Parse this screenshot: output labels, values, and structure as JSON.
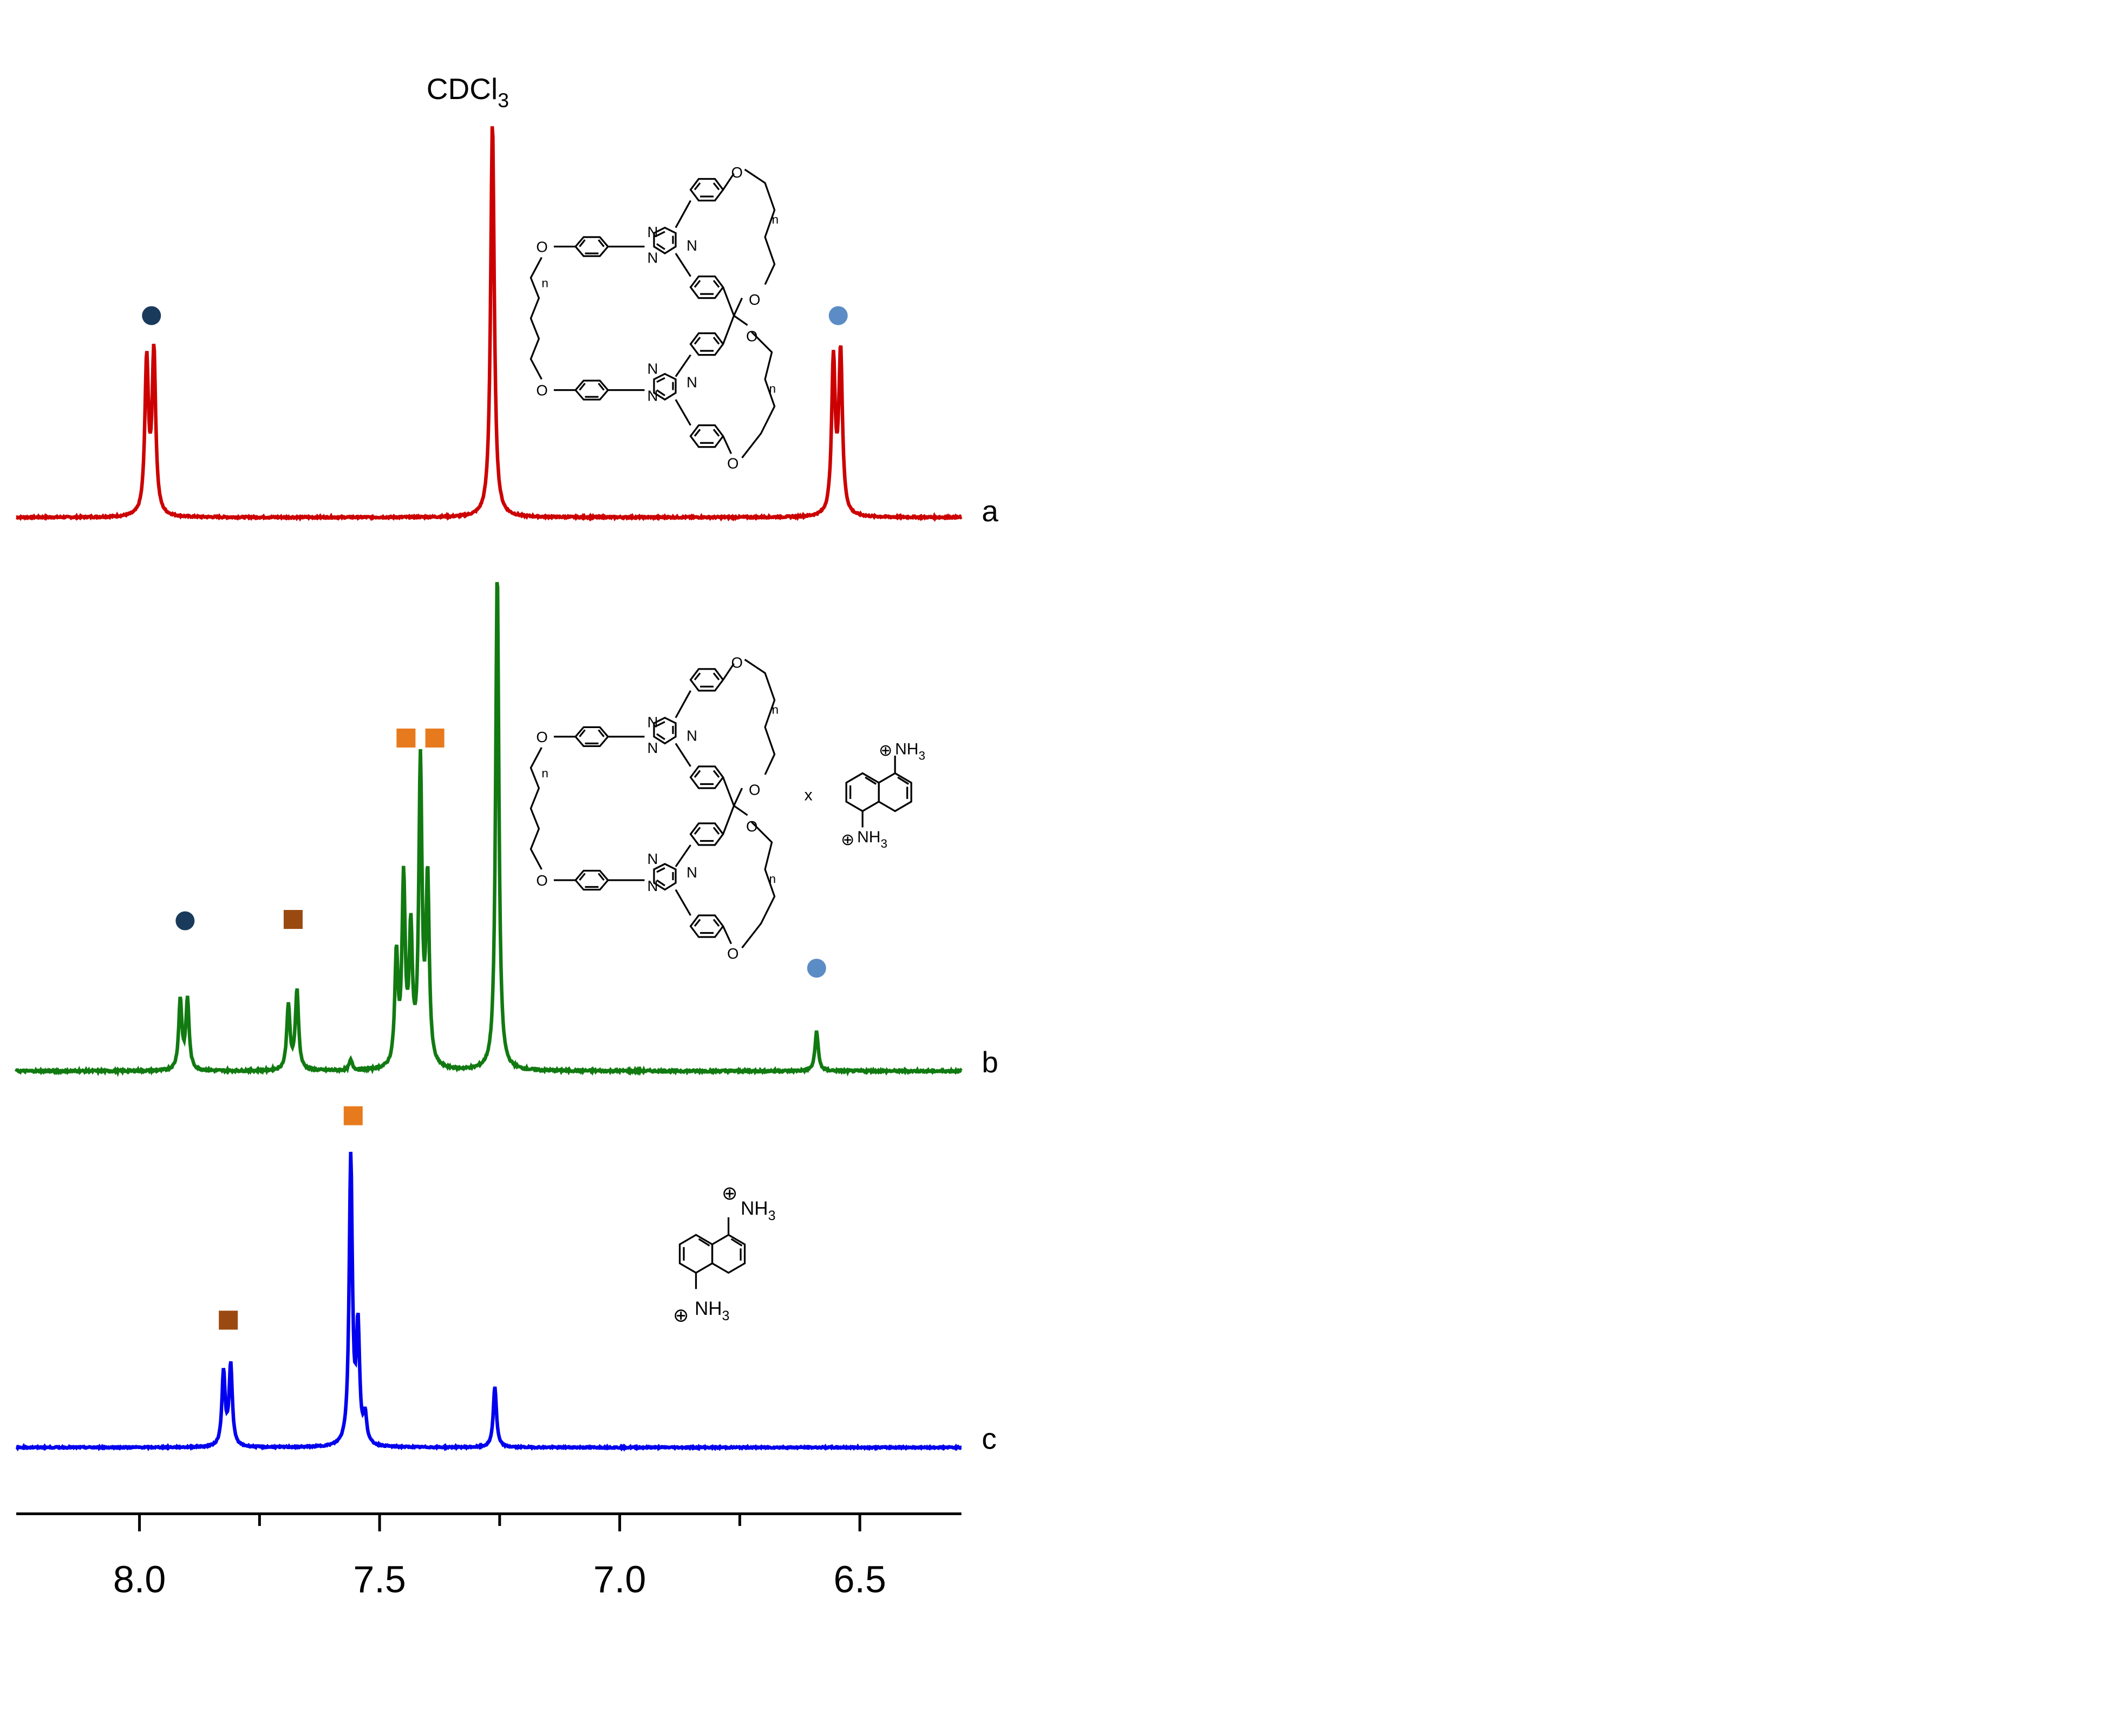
{
  "chart_data": {
    "type": "line",
    "xlabel": "",
    "ylabel": "",
    "xlim": [
      8.24,
      6.28
    ],
    "x_axis_reversed": true,
    "x_major_ticks": [
      8.0,
      7.5,
      7.0,
      6.5
    ],
    "x_minor_ticks": [
      7.75,
      7.25,
      6.75
    ],
    "x_tick_labels": [
      "8.0",
      "7.5",
      "7.0",
      "6.5"
    ],
    "grid": false,
    "series": [
      {
        "name": "a",
        "color": "#cc0000",
        "peaks": [
          {
            "shift": 7.985,
            "height": 0.39
          },
          {
            "shift": 7.97,
            "height": 0.41
          },
          {
            "shift": 7.265,
            "height": 1.0
          },
          {
            "shift": 6.555,
            "height": 0.39
          },
          {
            "shift": 6.54,
            "height": 0.41
          }
        ]
      },
      {
        "name": "b",
        "color": "#117a11",
        "peaks": [
          {
            "shift": 7.915,
            "height": 0.14
          },
          {
            "shift": 7.9,
            "height": 0.14
          },
          {
            "shift": 7.69,
            "height": 0.13
          },
          {
            "shift": 7.672,
            "height": 0.16
          },
          {
            "shift": 7.56,
            "height": 0.02
          },
          {
            "shift": 7.465,
            "height": 0.22
          },
          {
            "shift": 7.45,
            "height": 0.37
          },
          {
            "shift": 7.435,
            "height": 0.26
          },
          {
            "shift": 7.415,
            "height": 0.6
          },
          {
            "shift": 7.4,
            "height": 0.37
          },
          {
            "shift": 7.255,
            "height": 1.0
          },
          {
            "shift": 6.59,
            "height": 0.08
          }
        ]
      },
      {
        "name": "c",
        "color": "#0000ee",
        "peaks": [
          {
            "shift": 7.825,
            "height": 0.22
          },
          {
            "shift": 7.81,
            "height": 0.24
          },
          {
            "shift": 7.56,
            "height": 0.85
          },
          {
            "shift": 7.545,
            "height": 0.34
          },
          {
            "shift": 7.53,
            "height": 0.08
          },
          {
            "shift": 7.26,
            "height": 0.18
          }
        ]
      }
    ],
    "annotations": {
      "solvent_label": "CDCl3",
      "markers": [
        {
          "spectrum": "a",
          "shape": "circle",
          "color": "#1a3a5c",
          "shift": 7.975
        },
        {
          "spectrum": "a",
          "shape": "circle",
          "color": "#5b8cc5",
          "shift": 6.545
        },
        {
          "spectrum": "b",
          "shape": "circle",
          "color": "#1a3a5c",
          "shift": 7.905
        },
        {
          "spectrum": "b",
          "shape": "square",
          "color": "#9a4a10",
          "shift": 7.68
        },
        {
          "spectrum": "b",
          "shape": "square",
          "color": "#e87a1e",
          "shift": 7.445
        },
        {
          "spectrum": "b",
          "shape": "square",
          "color": "#e87a1e",
          "shift": 7.385
        },
        {
          "spectrum": "b",
          "shape": "circle",
          "color": "#5b8cc5",
          "shift": 6.59
        },
        {
          "spectrum": "c",
          "shape": "square",
          "color": "#e87a1e",
          "shift": 7.555
        },
        {
          "spectrum": "c",
          "shape": "square",
          "color": "#9a4a10",
          "shift": 7.815
        }
      ],
      "structure_atoms": {
        "O": "O",
        "N": "N",
        "NH3": "NH",
        "sub3": "3",
        "plus": "⊕",
        "n": "n",
        "times": "x"
      }
    }
  }
}
